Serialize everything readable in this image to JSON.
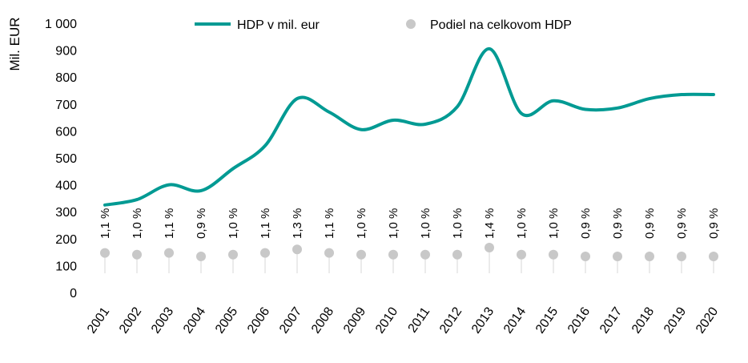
{
  "chart_data": {
    "type": "line",
    "title": "",
    "ylabel": "Mil. EUR",
    "xlabel": "",
    "ylim": [
      0,
      1000
    ],
    "yticks": [
      "0",
      "100",
      "200",
      "300",
      "400",
      "500",
      "600",
      "700",
      "800",
      "900",
      "1 000"
    ],
    "ytick_values": [
      0,
      100,
      200,
      300,
      400,
      500,
      600,
      700,
      800,
      900,
      1000
    ],
    "categories": [
      "2001",
      "2002",
      "2003",
      "2004",
      "2005",
      "2006",
      "2007",
      "2008",
      "2009",
      "2010",
      "2011",
      "2012",
      "2013",
      "2014",
      "2015",
      "2016",
      "2017",
      "2018",
      "2019",
      "2020"
    ],
    "legend_position": "top",
    "grid": false,
    "series": [
      {
        "name": "HDP v mil. eur",
        "kind": "line",
        "color": "#009A93",
        "values": [
          325,
          345,
          400,
          378,
          460,
          545,
          720,
          670,
          605,
          640,
          625,
          690,
          905,
          665,
          712,
          680,
          685,
          720,
          735,
          735
        ]
      },
      {
        "name": "Podiel na celkovom HDP",
        "kind": "dot",
        "color": "#C8C8C8",
        "values": [
          1.1,
          1.0,
          1.1,
          0.9,
          1.0,
          1.1,
          1.3,
          1.1,
          1.0,
          1.0,
          1.0,
          1.0,
          1.4,
          1.0,
          1.0,
          0.9,
          0.9,
          0.9,
          0.9,
          0.9
        ],
        "labels": [
          "1,1 %",
          "1,0 %",
          "1,1 %",
          "0,9 %",
          "1,0 %",
          "1,1 %",
          "1,3 %",
          "1,1 %",
          "1,0 %",
          "1,0 %",
          "1,0 %",
          "1,0 %",
          "1,4 %",
          "1,0 %",
          "1,0 %",
          "0,9 %",
          "0,9 %",
          "0,9 %",
          "0,9 %",
          "0,9 %"
        ]
      }
    ]
  }
}
